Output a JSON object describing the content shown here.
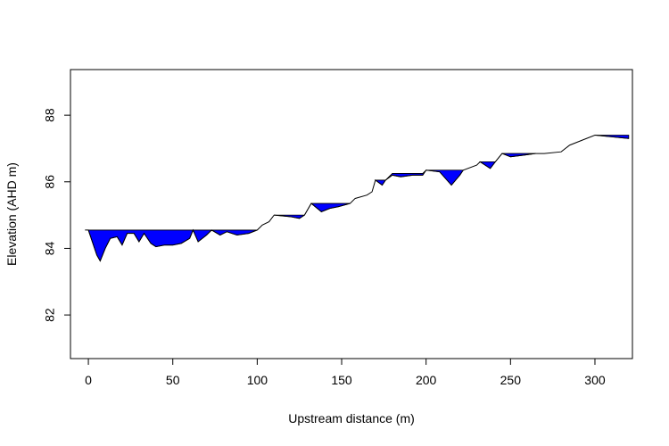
{
  "chart_data": {
    "type": "line",
    "xlabel": "Upstream distance (m)",
    "ylabel": "Elevation (AHD m)",
    "x": [
      -2,
      0,
      5,
      7,
      10,
      13,
      17,
      20,
      23,
      27,
      30,
      33,
      37,
      40,
      45,
      50,
      55,
      60,
      62,
      65,
      70,
      73,
      78,
      82,
      88,
      95,
      100,
      103,
      107,
      110,
      120,
      125,
      128,
      132,
      138,
      143,
      148,
      155,
      158,
      165,
      168,
      170,
      174,
      176,
      180,
      185,
      192,
      198,
      200,
      208,
      215,
      220,
      222,
      230,
      232,
      238,
      241,
      245,
      250,
      258,
      265,
      270,
      280,
      285,
      295,
      300,
      310,
      320
    ],
    "series": [
      {
        "name": "bed",
        "color": "#000000",
        "values": [
          84.55,
          84.55,
          83.8,
          83.62,
          84.0,
          84.3,
          84.35,
          84.1,
          84.45,
          84.45,
          84.2,
          84.45,
          84.15,
          84.05,
          84.1,
          84.1,
          84.15,
          84.3,
          84.55,
          84.2,
          84.4,
          84.55,
          84.4,
          84.5,
          84.4,
          84.45,
          84.55,
          84.7,
          84.8,
          85.0,
          84.95,
          84.9,
          85.0,
          85.35,
          85.1,
          85.2,
          85.25,
          85.35,
          85.5,
          85.6,
          85.7,
          86.05,
          85.9,
          86.05,
          86.2,
          86.15,
          86.2,
          86.2,
          86.35,
          86.3,
          85.9,
          86.2,
          86.35,
          86.5,
          86.6,
          86.4,
          86.6,
          86.85,
          86.75,
          86.8,
          86.85,
          86.85,
          86.9,
          87.1,
          87.3,
          87.4,
          87.35,
          87.3
        ]
      },
      {
        "name": "water",
        "color": "#0000ff",
        "values": [
          null,
          84.55,
          84.55,
          84.55,
          84.55,
          84.55,
          84.55,
          84.55,
          84.55,
          84.55,
          84.55,
          84.55,
          84.55,
          84.55,
          84.55,
          84.55,
          84.55,
          84.55,
          84.55,
          84.55,
          84.55,
          84.55,
          84.55,
          84.55,
          84.55,
          84.55,
          84.55,
          null,
          null,
          85.0,
          85.0,
          85.0,
          85.0,
          85.35,
          85.35,
          85.35,
          85.35,
          85.35,
          null,
          null,
          null,
          86.05,
          86.05,
          86.05,
          86.25,
          86.25,
          86.25,
          86.25,
          86.35,
          86.35,
          86.35,
          86.35,
          86.35,
          null,
          86.6,
          86.6,
          86.6,
          86.85,
          86.85,
          86.85,
          86.85,
          null,
          null,
          null,
          null,
          87.4,
          87.4,
          87.4
        ]
      }
    ],
    "xlim": [
      -10.6,
      322.2
    ],
    "ylim": [
      80.69,
      89.37
    ],
    "xticks": [
      0,
      50,
      100,
      150,
      200,
      250,
      300
    ],
    "yticks": [
      82,
      84,
      86,
      88
    ]
  }
}
